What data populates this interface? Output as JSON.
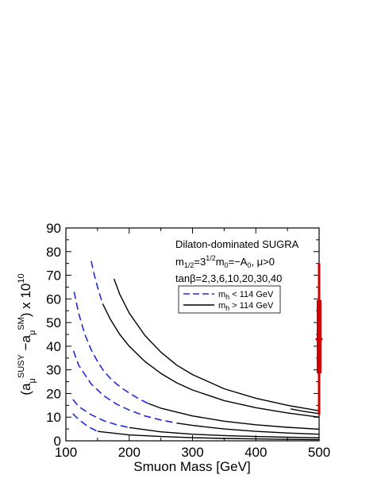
{
  "chart_data": {
    "type": "line",
    "xlabel": "Smuon Mass  [GeV]",
    "xlim": [
      100,
      500
    ],
    "ylim": [
      0,
      90
    ],
    "xticks": [
      100,
      200,
      300,
      400,
      500
    ],
    "yticks": [
      0,
      10,
      20,
      30,
      40,
      50,
      60,
      70,
      80,
      90
    ],
    "annotation": {
      "title": "Dilaton-dominated SUGRA",
      "tanbeta": "tanβ=2,3,6,10,20,30,40"
    },
    "legend": {
      "placement": "top-right",
      "entries": [
        {
          "style": "dashed",
          "color": "#1f2bd6"
        },
        {
          "style": "solid",
          "color": "#000000"
        }
      ]
    },
    "series": [
      {
        "style": "dashed",
        "x": [
          111,
          120,
          135,
          150
        ],
        "y": [
          11.5,
          9.0,
          6.0,
          4.0
        ]
      },
      {
        "style": "solid",
        "x": [
          150,
          200,
          250,
          300,
          350,
          400,
          450,
          500
        ],
        "y": [
          4.0,
          2.5,
          1.8,
          1.3,
          1.0,
          0.8,
          0.6,
          0.5
        ]
      },
      {
        "style": "dashed",
        "x": [
          111,
          120,
          140,
          160,
          180,
          200
        ],
        "y": [
          17.5,
          14.5,
          11.0,
          8.5,
          6.8,
          5.6
        ]
      },
      {
        "style": "solid",
        "x": [
          200,
          250,
          300,
          350,
          400,
          450,
          500
        ],
        "y": [
          5.6,
          3.8,
          2.8,
          2.2,
          1.8,
          1.5,
          1.3
        ]
      },
      {
        "style": "dashed",
        "x": [
          112,
          120,
          140,
          160,
          180,
          200,
          225,
          250,
          275
        ],
        "y": [
          38.0,
          32.0,
          24.0,
          19.0,
          15.5,
          13.0,
          10.5,
          8.8,
          7.5
        ]
      },
      {
        "style": "solid",
        "x": [
          275,
          300,
          350,
          400,
          450,
          500
        ],
        "y": [
          7.5,
          6.5,
          5.0,
          4.0,
          3.3,
          2.8
        ]
      },
      {
        "style": "dashed",
        "x": [
          113,
          120,
          130,
          140,
          150,
          160,
          170,
          180,
          190,
          200,
          215,
          230
        ],
        "y": [
          63.0,
          54.0,
          45.0,
          38.5,
          33.5,
          29.5,
          26.5,
          24.0,
          22.0,
          20.2,
          17.8,
          15.8
        ]
      },
      {
        "style": "solid",
        "x": [
          230,
          250,
          300,
          350,
          400,
          450,
          500
        ],
        "y": [
          15.8,
          13.8,
          10.5,
          8.3,
          6.8,
          5.7,
          4.9
        ]
      },
      {
        "style": "dashed",
        "x": [
          140,
          145,
          150,
          155,
          158
        ],
        "y": [
          76.0,
          70.0,
          65.0,
          60.5,
          58.0
        ]
      },
      {
        "style": "solid",
        "x": [
          158,
          170,
          185,
          200,
          225,
          250,
          275,
          300,
          350,
          400,
          450,
          500
        ],
        "y": [
          58.0,
          51.5,
          45.0,
          40.0,
          33.5,
          28.5,
          24.5,
          21.5,
          17.0,
          14.0,
          11.8,
          10.0
        ]
      },
      {
        "style": "solid",
        "x": [
          176,
          185,
          200,
          225,
          250,
          275,
          300,
          350,
          400,
          450,
          500
        ],
        "y": [
          68.5,
          62.0,
          54.0,
          44.5,
          37.5,
          32.0,
          28.0,
          22.0,
          18.0,
          15.0,
          12.7
        ]
      },
      {
        "style": "solid",
        "x": [
          455,
          475,
          500
        ],
        "y": [
          13.5,
          12.5,
          11.5
        ]
      }
    ],
    "error_bar": {
      "x": 500,
      "center": 43.0,
      "inner": [
        28.5,
        59.5
      ],
      "outer": [
        11.0,
        75.0
      ],
      "color": "#d00000"
    }
  }
}
